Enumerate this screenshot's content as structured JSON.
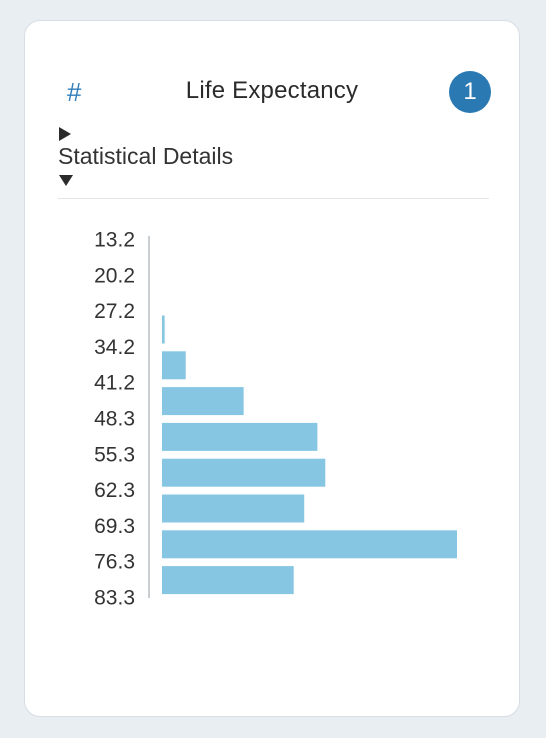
{
  "card": {
    "hash_symbol": "#",
    "title": "Life Expectancy",
    "badge": "1",
    "section_label": "Statistical Details"
  },
  "colors": {
    "bar": "#86c6e3",
    "accent": "#2a79b2",
    "axis": "#c9ced3"
  },
  "icons": {
    "collapse": "triangle-right-icon",
    "expand": "triangle-down-icon"
  },
  "chart_data": {
    "type": "bar",
    "orientation": "horizontal",
    "title": "",
    "xlabel": "",
    "ylabel": "",
    "tick_labels": [
      "13.2",
      "20.2",
      "27.2",
      "34.2",
      "41.2",
      "48.3",
      "55.3",
      "62.3",
      "69.3",
      "76.3",
      "83.3"
    ],
    "bins": [
      {
        "from": 13.2,
        "to": 20.2,
        "count": 0
      },
      {
        "from": 20.2,
        "to": 27.2,
        "count": 0
      },
      {
        "from": 27.2,
        "to": 34.2,
        "count": 1
      },
      {
        "from": 34.2,
        "to": 41.2,
        "count": 9
      },
      {
        "from": 41.2,
        "to": 48.3,
        "count": 31
      },
      {
        "from": 48.3,
        "to": 55.3,
        "count": 59
      },
      {
        "from": 55.3,
        "to": 62.3,
        "count": 62
      },
      {
        "from": 62.3,
        "to": 69.3,
        "count": 54
      },
      {
        "from": 69.3,
        "to": 76.3,
        "count": 112
      },
      {
        "from": 76.3,
        "to": 83.3,
        "count": 50
      }
    ],
    "grid": false,
    "legend": "none"
  }
}
